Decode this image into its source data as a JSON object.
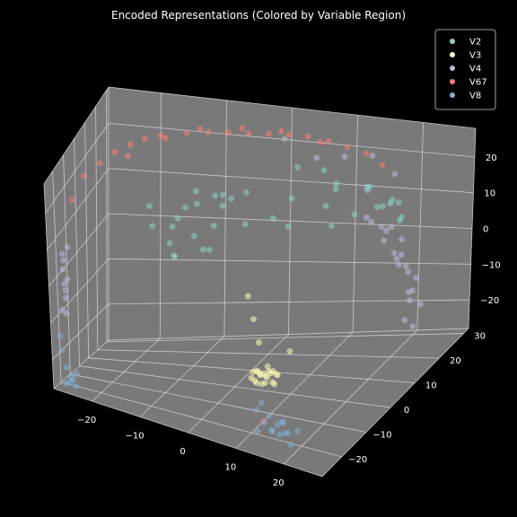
{
  "chart_data": {
    "type": "scatter",
    "projection": "3d",
    "title": "Encoded Representations (Colored by Variable Region)",
    "xlabel": "",
    "ylabel": "",
    "zlabel": "",
    "x_ticks": [
      -20,
      -10,
      0,
      10,
      20
    ],
    "y_ticks": [
      -20,
      -10,
      0,
      10,
      20,
      30
    ],
    "z_ticks": [
      -20,
      -10,
      0,
      10,
      20
    ],
    "xlim": [
      -28,
      28
    ],
    "ylim": [
      -28,
      32
    ],
    "zlim": [
      -28,
      28
    ],
    "grid": true,
    "pane_color": "#808080",
    "background": "#000000",
    "legend_position": "top-right",
    "series": [
      {
        "name": "V2",
        "color": "#8dd3c7",
        "points": [
          [
            -5,
            10,
            12
          ],
          [
            -8,
            5,
            14
          ],
          [
            -10,
            0,
            12
          ],
          [
            -6,
            -4,
            10
          ],
          [
            -12,
            4,
            8
          ],
          [
            -3,
            8,
            15
          ],
          [
            -14,
            -2,
            10
          ],
          [
            -7,
            12,
            6
          ],
          [
            -9,
            -6,
            5
          ],
          [
            -4,
            2,
            18
          ],
          [
            -11,
            9,
            11
          ],
          [
            -2,
            -8,
            9
          ],
          [
            -13,
            6,
            3
          ],
          [
            -6,
            14,
            13
          ],
          [
            -8,
            -10,
            7
          ],
          [
            0,
            6,
            10
          ],
          [
            -10,
            12,
            14
          ],
          [
            -5,
            -2,
            6
          ],
          [
            -15,
            0,
            14
          ],
          [
            -1,
            10,
            16
          ],
          [
            18,
            18,
            12
          ],
          [
            20,
            15,
            14
          ],
          [
            16,
            20,
            16
          ],
          [
            22,
            18,
            10
          ],
          [
            19,
            22,
            12
          ],
          [
            17,
            16,
            18
          ],
          [
            21,
            20,
            8
          ],
          [
            15,
            22,
            14
          ],
          [
            23,
            14,
            16
          ],
          [
            18,
            24,
            10
          ],
          [
            5,
            18,
            20
          ],
          [
            8,
            22,
            18
          ],
          [
            2,
            15,
            8
          ],
          [
            10,
            20,
            5
          ],
          [
            12,
            16,
            18
          ],
          [
            6,
            12,
            15
          ],
          [
            9,
            25,
            12
          ],
          [
            3,
            20,
            4
          ],
          [
            14,
            19,
            9
          ],
          [
            11,
            14,
            13
          ]
        ]
      },
      {
        "name": "V3",
        "color": "#ffffb3",
        "points": [
          [
            8,
            -12,
            -17
          ],
          [
            9,
            -11,
            -18
          ],
          [
            10,
            -12,
            -18
          ],
          [
            8,
            -10,
            -19
          ],
          [
            9,
            -13,
            -17
          ],
          [
            10,
            -10,
            -18
          ],
          [
            11,
            -12,
            -19
          ],
          [
            7,
            -11,
            -18
          ],
          [
            9,
            -12,
            -20
          ],
          [
            10,
            -11,
            -17
          ],
          [
            8,
            -13,
            -19
          ],
          [
            11,
            -10,
            -18
          ],
          [
            9,
            -9,
            -17
          ],
          [
            12,
            -12,
            -17
          ],
          [
            7,
            -12,
            -19
          ],
          [
            10,
            -13,
            -19
          ],
          [
            9,
            -10,
            -19
          ],
          [
            8,
            -12,
            -20
          ],
          [
            11,
            -11,
            -20
          ],
          [
            10,
            -9,
            -18
          ],
          [
            5,
            -5,
            -8
          ],
          [
            3,
            -2,
            -4
          ],
          [
            7,
            -8,
            -12
          ],
          [
            12,
            -6,
            -14
          ],
          [
            9,
            -14,
            -16
          ]
        ]
      },
      {
        "name": "V4",
        "color": "#bebada",
        "points": [
          [
            -28,
            -14,
            0
          ],
          [
            -28,
            -13,
            -4
          ],
          [
            -28,
            -12,
            -8
          ],
          [
            -28,
            -14,
            4
          ],
          [
            -27,
            -15,
            -2
          ],
          [
            -28,
            -13,
            2
          ],
          [
            -28,
            -12,
            -6
          ],
          [
            -27,
            -14,
            6
          ],
          [
            -28,
            -16,
            -10
          ],
          [
            -28,
            -12,
            -12
          ],
          [
            26,
            10,
            2
          ],
          [
            26,
            6,
            6
          ],
          [
            27,
            12,
            -2
          ],
          [
            26,
            8,
            10
          ],
          [
            25,
            4,
            14
          ],
          [
            26,
            13,
            -6
          ],
          [
            27,
            9,
            -4
          ],
          [
            26,
            5,
            8
          ],
          [
            25,
            2,
            16
          ],
          [
            26,
            11,
            0
          ],
          [
            24,
            0,
            18
          ],
          [
            26,
            7,
            4
          ],
          [
            27,
            14,
            -10
          ],
          [
            25,
            3,
            12
          ],
          [
            26,
            12,
            -8
          ],
          [
            24,
            -2,
            20
          ],
          [
            26,
            10,
            -12
          ],
          [
            27,
            11,
            -14
          ],
          [
            26,
            8,
            6
          ],
          [
            25,
            6,
            14
          ],
          [
            10,
            26,
            20
          ],
          [
            5,
            28,
            18
          ],
          [
            15,
            24,
            22
          ],
          [
            20,
            20,
            20
          ],
          [
            0,
            28,
            22
          ]
        ]
      },
      {
        "name": "V67",
        "color": "#fb8072",
        "points": [
          [
            -22,
            5,
            24
          ],
          [
            -20,
            8,
            25
          ],
          [
            -18,
            10,
            26
          ],
          [
            -15,
            12,
            26
          ],
          [
            -12,
            14,
            27
          ],
          [
            -9,
            16,
            27
          ],
          [
            -6,
            17,
            27
          ],
          [
            -3,
            18,
            27
          ],
          [
            0,
            19,
            27
          ],
          [
            3,
            20,
            27
          ],
          [
            6,
            20,
            27
          ],
          [
            9,
            21,
            26
          ],
          [
            12,
            21,
            25
          ],
          [
            15,
            21,
            24
          ],
          [
            18,
            20,
            22
          ],
          [
            -24,
            2,
            22
          ],
          [
            -26,
            -2,
            20
          ],
          [
            -27,
            -8,
            16
          ],
          [
            -16,
            13,
            26
          ],
          [
            -4,
            18,
            28
          ],
          [
            2,
            19,
            28
          ],
          [
            8,
            20,
            26
          ],
          [
            -10,
            15,
            28
          ],
          [
            -20,
            6,
            23
          ],
          [
            10,
            -14,
            -28
          ]
        ]
      },
      {
        "name": "V8",
        "color": "#80b1d3",
        "points": [
          [
            -26,
            -20,
            -26
          ],
          [
            -25,
            -20,
            -28
          ],
          [
            -27,
            -19,
            -24
          ],
          [
            -26,
            -21,
            -27
          ],
          [
            -25,
            -19,
            -25
          ],
          [
            -26,
            -18,
            -27
          ],
          [
            -27,
            -20,
            -28
          ],
          [
            -28,
            -18,
            -20
          ],
          [
            -28,
            -19,
            -16
          ],
          [
            12,
            -20,
            -20
          ],
          [
            14,
            -21,
            -22
          ],
          [
            16,
            -22,
            -23
          ],
          [
            18,
            -23,
            -24
          ],
          [
            13,
            -21,
            -24
          ],
          [
            15,
            -22,
            -25
          ],
          [
            17,
            -22,
            -22
          ],
          [
            19,
            -24,
            -23
          ],
          [
            11,
            -20,
            -22
          ],
          [
            20,
            -25,
            -25
          ],
          [
            14,
            -20,
            -26
          ],
          [
            16,
            -21,
            -26
          ],
          [
            18,
            -24,
            -21
          ],
          [
            21,
            -24,
            -22
          ],
          [
            12,
            -22,
            -26
          ]
        ]
      }
    ]
  }
}
